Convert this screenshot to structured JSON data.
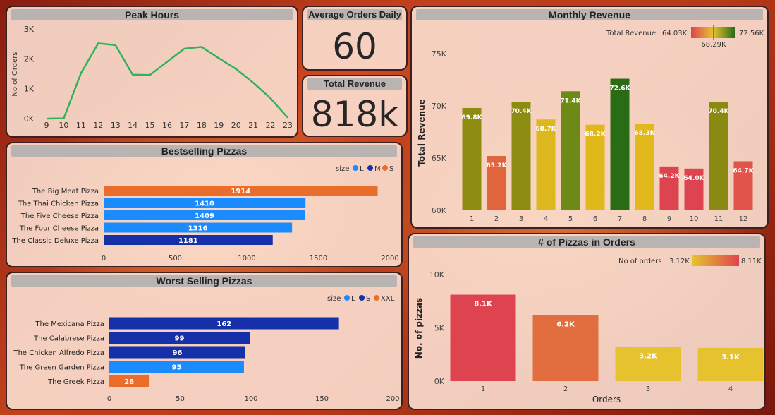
{
  "peak_hours": {
    "title": "Peak Hours",
    "ylabel": "No of Orders",
    "y_ticks": [
      "0K",
      "1K",
      "2K",
      "3K"
    ],
    "x_ticks": [
      "9",
      "10",
      "11",
      "12",
      "13",
      "14",
      "15",
      "16",
      "17",
      "18",
      "19",
      "20",
      "21",
      "22",
      "23"
    ],
    "line_color": "#2eb25a"
  },
  "avg_orders": {
    "title": "Average Orders Daily",
    "value": "60"
  },
  "total_revenue_card": {
    "title": "Total Revenue",
    "value": "818k"
  },
  "monthly_revenue": {
    "title": "Monthly Revenue",
    "ylabel": "Total Revenue",
    "legend_title": "Total Revenue",
    "legend_min": "64.03K",
    "legend_mid": "68.29K",
    "legend_max": "72.56K",
    "y_ticks": [
      "60K",
      "65K",
      "70K",
      "75K"
    ]
  },
  "bestselling": {
    "title": "Bestselling Pizzas",
    "legend_title": "size",
    "legend_items": [
      {
        "label": "L",
        "color": "#1a8cff"
      },
      {
        "label": "M",
        "color": "#1530a8"
      },
      {
        "label": "S",
        "color": "#ea6d2c"
      }
    ],
    "x_ticks": [
      "0",
      "500",
      "1000",
      "1500",
      "2000"
    ]
  },
  "worst_selling": {
    "title": "Worst Selling Pizzas",
    "legend_title": "size",
    "legend_items": [
      {
        "label": "L",
        "color": "#1a8cff"
      },
      {
        "label": "S",
        "color": "#1530a8"
      },
      {
        "label": "XXL",
        "color": "#ea6d2c"
      }
    ],
    "x_ticks": [
      "0",
      "50",
      "100",
      "150",
      "200"
    ]
  },
  "pizzas_in_orders": {
    "title": "# of Pizzas in Orders",
    "ylabel": "No. of pizzas",
    "xlabel": "Orders",
    "legend_title": "No of orders",
    "legend_min": "3.12K",
    "legend_max": "8.11K",
    "y_ticks": [
      "0K",
      "5K",
      "10K"
    ]
  },
  "chart_data": [
    {
      "type": "line",
      "title": "Peak Hours",
      "ylabel": "No of Orders",
      "x": [
        9,
        10,
        11,
        12,
        13,
        14,
        15,
        16,
        17,
        18,
        19,
        20,
        21,
        22,
        23
      ],
      "values": [
        1,
        8,
        1520,
        2520,
        2460,
        1470,
        1460,
        1900,
        2340,
        2400,
        2020,
        1660,
        1200,
        680,
        30
      ],
      "ylim": [
        0,
        3000
      ]
    },
    {
      "type": "bar",
      "title": "Monthly Revenue",
      "ylabel": "Total Revenue",
      "categories": [
        "1",
        "2",
        "3",
        "4",
        "5",
        "6",
        "7",
        "8",
        "9",
        "10",
        "11",
        "12"
      ],
      "values": [
        69.8,
        65.2,
        70.4,
        68.7,
        71.4,
        68.2,
        72.6,
        68.3,
        64.2,
        64.0,
        70.4,
        64.7
      ],
      "labels": [
        "69.8K",
        "65.2K",
        "70.4K",
        "68.7K",
        "71.4K",
        "68.2K",
        "72.6K",
        "68.3K",
        "64.2K",
        "64.0K",
        "70.4K",
        "64.7K"
      ],
      "colors": [
        "#8c8c10",
        "#e0643c",
        "#8c8c10",
        "#dcb81e",
        "#6e8a16",
        "#e0b81a",
        "#2a6c16",
        "#e2b81c",
        "#de4450",
        "#de4450",
        "#8a8a12",
        "#e0544a"
      ],
      "ylim": [
        60,
        75
      ]
    },
    {
      "type": "bar",
      "title": "Bestselling Pizzas",
      "categories": [
        "The Big Meat Pizza",
        "The Thai Chicken Pizza",
        "The Five Cheese Pizza",
        "The Four Cheese Pizza",
        "The Classic Deluxe Pizza"
      ],
      "values": [
        1914,
        1410,
        1409,
        1316,
        1181
      ],
      "sizes": [
        "S",
        "L",
        "L",
        "L",
        "M"
      ],
      "xlim": [
        0,
        2000
      ]
    },
    {
      "type": "bar",
      "title": "Worst Selling Pizzas",
      "categories": [
        "The Mexicana Pizza",
        "The Calabrese Pizza",
        "The Chicken Alfredo Pizza",
        "The Green Garden Pizza",
        "The Greek Pizza"
      ],
      "values": [
        162,
        99,
        96,
        95,
        28
      ],
      "sizes": [
        "S",
        "S",
        "S",
        "L",
        "XXL"
      ],
      "xlim": [
        0,
        200
      ]
    },
    {
      "type": "bar",
      "title": "# of Pizzas in Orders",
      "ylabel": "No. of pizzas",
      "xlabel": "Orders",
      "categories": [
        "1",
        "2",
        "3",
        "4"
      ],
      "values": [
        8.11,
        6.2,
        3.2,
        3.12
      ],
      "labels": [
        "8.1K",
        "6.2K",
        "3.2K",
        "3.1K"
      ],
      "colors": [
        "#de4450",
        "#e26e40",
        "#e6c22e",
        "#e6c22e"
      ],
      "ylim": [
        0,
        10
      ]
    }
  ]
}
